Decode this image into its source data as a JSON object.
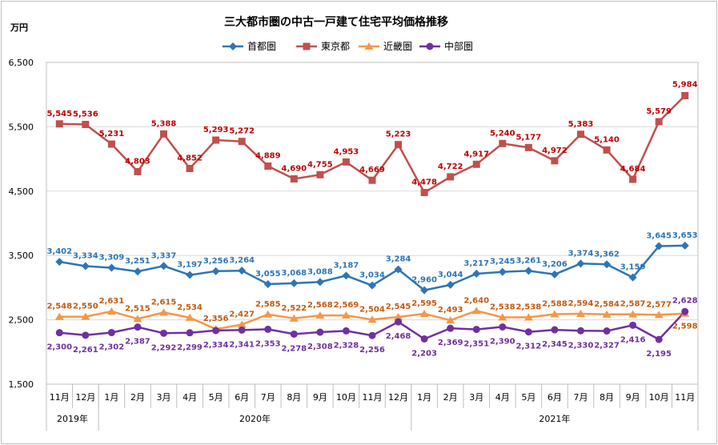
{
  "chart_data": {
    "type": "line",
    "title": "三大都市圏の中古一戸建て住宅平均価格推移",
    "ylabel": "万円",
    "ylim": [
      1500,
      6500
    ],
    "yticks": [
      1500,
      2500,
      3500,
      4500,
      5500,
      6500
    ],
    "ytick_labels": [
      "1,500",
      "2,500",
      "3,500",
      "4,500",
      "5,500",
      "6,500"
    ],
    "categories": [
      "11月",
      "12月",
      "1月",
      "2月",
      "3月",
      "4月",
      "5月",
      "6月",
      "7月",
      "8月",
      "9月",
      "10月",
      "11月",
      "12月",
      "1月",
      "2月",
      "3月",
      "4月",
      "5月",
      "6月",
      "7月",
      "8月",
      "9月",
      "10月",
      "11月"
    ],
    "year_groups": [
      {
        "label": "2019年",
        "start": 0,
        "end": 1
      },
      {
        "label": "2020年",
        "start": 2,
        "end": 13
      },
      {
        "label": "2021年",
        "start": 14,
        "end": 24
      }
    ],
    "legend_position": "top",
    "grid": "horizontal",
    "series": [
      {
        "name": "首都圏",
        "color": "#2e75b6",
        "label_color": "#2e75b6",
        "marker": "diamond",
        "values": [
          3402,
          3334,
          3309,
          3251,
          3337,
          3197,
          3256,
          3264,
          3055,
          3068,
          3088,
          3187,
          3034,
          3284,
          2960,
          3044,
          3217,
          3245,
          3261,
          3206,
          3374,
          3362,
          3159,
          3645,
          3653
        ],
        "labels": [
          "3,402",
          "3,334",
          "3,309",
          "3,251",
          "3,337",
          "3,197",
          "3,256",
          "3,264",
          "3,055",
          "3,068",
          "3,088",
          "3,187",
          "3,034",
          "3,284",
          "2,960",
          "3,044",
          "3,217",
          "3,245",
          "3,261",
          "3,206",
          "3,374",
          "3,362",
          "3,159",
          "3,645",
          "3,653"
        ]
      },
      {
        "name": "東京都",
        "color": "#c0504d",
        "label_color": "#c00000",
        "marker": "square",
        "values": [
          5545,
          5536,
          5231,
          4803,
          5388,
          4852,
          5293,
          5272,
          4889,
          4690,
          4755,
          4953,
          4669,
          5223,
          4478,
          4722,
          4917,
          5240,
          5177,
          4972,
          5383,
          5140,
          4684,
          5579,
          5984
        ],
        "labels": [
          "5,545",
          "5,536",
          "5,231",
          "4,803",
          "5,388",
          "4,852",
          "5,293",
          "5,272",
          "4,889",
          "4,690",
          "4,755",
          "4,953",
          "4,669",
          "5,223",
          "4,478",
          "4,722",
          "4,917",
          "5,240",
          "5,177",
          "4,972",
          "5,383",
          "5,140",
          "4,684",
          "5,579",
          "5,984"
        ]
      },
      {
        "name": "近畿圏",
        "color": "#f79646",
        "label_color": "#c55a11",
        "marker": "triangle",
        "values": [
          2548,
          2550,
          2631,
          2515,
          2615,
          2534,
          2356,
          2427,
          2585,
          2522,
          2568,
          2569,
          2504,
          2545,
          2595,
          2493,
          2640,
          2538,
          2538,
          2588,
          2594,
          2584,
          2587,
          2577,
          2598
        ],
        "labels": [
          "2,548",
          "2,550",
          "2,631",
          "2,515",
          "2,615",
          "2,534",
          "2,356",
          "2,427",
          "2,585",
          "2,522",
          "2,568",
          "2,569",
          "2,504",
          "2,545",
          "2,595",
          "2,493",
          "2,640",
          "2,538",
          "2,538",
          "2,588",
          "2,594",
          "2,584",
          "2,587",
          "2,577",
          "2,598"
        ]
      },
      {
        "name": "中部圏",
        "color": "#7030a0",
        "label_color": "#7030a0",
        "marker": "circle",
        "values": [
          2300,
          2261,
          2302,
          2387,
          2292,
          2299,
          2334,
          2341,
          2353,
          2278,
          2308,
          2328,
          2256,
          2468,
          2203,
          2369,
          2351,
          2390,
          2312,
          2345,
          2330,
          2327,
          2416,
          2195,
          2628
        ],
        "labels": [
          "2,300",
          "2,261",
          "2,302",
          "2,387",
          "2,292",
          "2,299",
          "2,334",
          "2,341",
          "2,353",
          "2,278",
          "2,308",
          "2,328",
          "2,256",
          "2,468",
          "2,203",
          "2,369",
          "2,351",
          "2,390",
          "2,312",
          "2,345",
          "2,330",
          "2,327",
          "2,416",
          "2,195",
          "2,628"
        ]
      }
    ]
  }
}
